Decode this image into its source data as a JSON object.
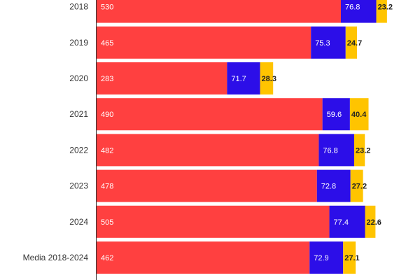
{
  "chart_data": {
    "type": "bar",
    "orientation": "horizontal",
    "stacked": true,
    "categories": [
      "2018",
      "2019",
      "2020",
      "2021",
      "2022",
      "2023",
      "2024",
      "Media 2018-2024"
    ],
    "series": [
      {
        "values": [
          530,
          465,
          283,
          490,
          482,
          478,
          505,
          462
        ],
        "color": "#ff4040"
      },
      {
        "values": [
          76.8,
          75.3,
          71.7,
          59.6,
          76.8,
          72.8,
          77.4,
          72.9
        ],
        "color": "#2c0ee8"
      },
      {
        "values": [
          23.2,
          24.7,
          28.3,
          40.4,
          23.2,
          27.2,
          22.6,
          27.1
        ],
        "color": "#ffc400"
      }
    ],
    "data_labels": true,
    "xlim": [
      0,
      700
    ],
    "grid": false,
    "legend": "none"
  }
}
